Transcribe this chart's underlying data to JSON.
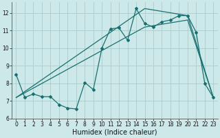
{
  "xlabel": "Humidex (Indice chaleur)",
  "bg_color": "#cce8e8",
  "grid_color": "#aacccc",
  "line_color": "#1a7070",
  "xlim": [
    -0.5,
    23.5
  ],
  "ylim": [
    6.0,
    12.6
  ],
  "yticks": [
    6,
    7,
    8,
    9,
    10,
    11,
    12
  ],
  "xticks": [
    0,
    1,
    2,
    3,
    4,
    5,
    6,
    7,
    8,
    9,
    10,
    11,
    12,
    13,
    14,
    15,
    16,
    17,
    18,
    19,
    20,
    21,
    22,
    23
  ],
  "series1_x": [
    0,
    1,
    2,
    3,
    4,
    5,
    6,
    7,
    8,
    9,
    10,
    11,
    12,
    13,
    14,
    15,
    16,
    17,
    18,
    19,
    20,
    21,
    22,
    23
  ],
  "series1_y": [
    8.5,
    7.2,
    7.4,
    7.25,
    7.25,
    6.8,
    6.6,
    6.55,
    8.05,
    7.65,
    10.0,
    11.1,
    11.15,
    10.45,
    12.25,
    11.4,
    11.2,
    11.5,
    11.6,
    11.85,
    11.85,
    10.9,
    8.0,
    7.2
  ],
  "series2_x": [
    0,
    15,
    20,
    23
  ],
  "series2_y": [
    7.2,
    12.25,
    11.85,
    7.2
  ],
  "series3_x": [
    0,
    15,
    20,
    23
  ],
  "series3_y": [
    7.2,
    11.2,
    11.6,
    7.2
  ],
  "tick_fontsize": 5.5,
  "xlabel_fontsize": 7.0
}
